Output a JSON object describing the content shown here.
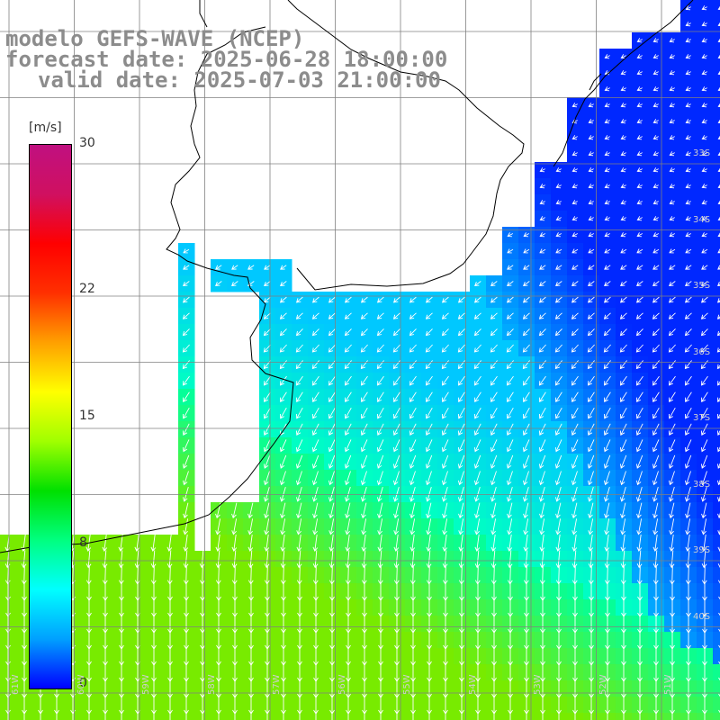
{
  "titles": {
    "line1": "modelo GEFS-WAVE (NCEP)",
    "line2": "forecast date: 2025-06-28 18:00:00",
    "line3": "valid date: 2025-07-03 21:00:00"
  },
  "colorbar": {
    "unit": "[m/s]",
    "ticks": [
      {
        "label": "30",
        "value": 30
      },
      {
        "label": "22",
        "value": 22
      },
      {
        "label": "15",
        "value": 15
      },
      {
        "label": "8",
        "value": 8
      },
      {
        "label": "0",
        "value": 0
      }
    ],
    "colors": [
      "#0000ff",
      "#00a0ff",
      "#00ffff",
      "#00ff80",
      "#00e000",
      "#a0ff00",
      "#ffff00",
      "#ffa000",
      "#ff3000",
      "#ff0000",
      "#d01060",
      "#c01080"
    ]
  },
  "map": {
    "lat_labels": [
      "33S",
      "34S",
      "35S",
      "36S",
      "37S",
      "38S",
      "39S",
      "40S"
    ],
    "lon_labels": [
      "61W",
      "60W",
      "59W",
      "58W",
      "57W",
      "56W",
      "55W",
      "54W",
      "53W",
      "52W",
      "51W"
    ],
    "colors": {
      "land": "#ffffff",
      "coast": "#000000",
      "grid": "#808080",
      "arrow": "#ffffff"
    }
  }
}
